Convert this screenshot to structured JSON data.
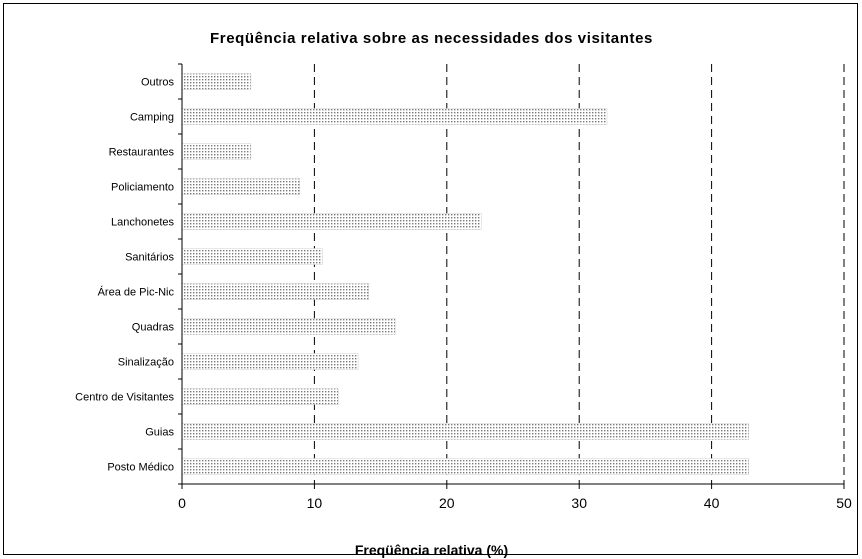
{
  "chart_data": {
    "type": "bar",
    "orientation": "horizontal",
    "title": "Freqüência relativa sobre as necessidades dos visitantes",
    "xlabel": "Freqüência relativa (%)",
    "ylabel": "",
    "xlim": [
      0,
      50
    ],
    "xticks": [
      0,
      10,
      20,
      30,
      40,
      50
    ],
    "grid": "vertical dashed",
    "legend": "none",
    "categories": [
      "Outros",
      "Camping",
      "Restaurantes",
      "Policiamento",
      "Lanchonetes",
      "Sanitários",
      "Área de Pic-Nic",
      "Quadras",
      "Sinalização",
      "Centro de Visitantes",
      "Guias",
      "Posto Médico"
    ],
    "values": [
      5.2,
      32.1,
      5.2,
      8.9,
      22.6,
      10.6,
      14.1,
      16.1,
      13.3,
      11.8,
      42.8,
      42.8
    ],
    "bar_fill": "dotted pattern",
    "colors": {
      "bar_dots": "#808080",
      "axis": "#000000",
      "grid": "#000000"
    }
  }
}
